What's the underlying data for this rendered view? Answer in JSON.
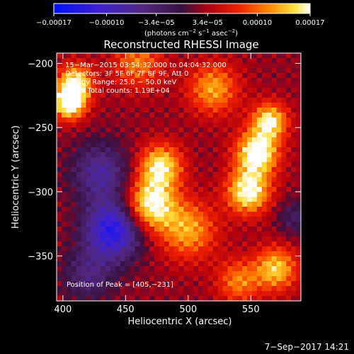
{
  "chart_data": {
    "type": "heatmap",
    "title": "Reconstructed RHESSI Image",
    "xlabel": "Heliocentric X (arcsec)",
    "ylabel": "Heliocentric Y (arcsec)",
    "xlim": [
      395,
      590
    ],
    "ylim": [
      -385,
      -192
    ],
    "x_ticks": [
      400,
      450,
      500,
      550
    ],
    "y_ticks": [
      -200,
      -250,
      -300,
      -350
    ],
    "x_tick_labels": [
      "400",
      "450",
      "500",
      "550"
    ],
    "y_tick_labels": [
      "−200",
      "−250",
      "−300",
      "−350"
    ],
    "colorbar": {
      "range": [
        -0.00017,
        0.00017
      ],
      "ticks": [
        -0.00017,
        -0.0001,
        -3.4e-05,
        3.4e-05,
        0.0001,
        0.00017
      ],
      "tick_labels": [
        "−0.00017",
        "−0.00010",
        "−3.4e−05",
        "3.4e−05",
        "0.00010",
        "0.00017"
      ],
      "label_main": "(photons cm",
      "label_sup1": "−2",
      "label_mid": " s",
      "label_sup2": "−1",
      "label_end": " asec",
      "label_sup3": "−2",
      "label_close": ")",
      "colormap": "rainbow-like: blue-purple-red-orange-yellow-white"
    },
    "annotations": [
      "15−Mar−2015 03:54:32.000 to 04:04:32.000",
      "Detectors: 3F 5F 6F 7F 8F 9F, Att 0",
      "Energy Range: 25.0 − 50.0 keV",
      "Clean    Total counts: 1.19E+04"
    ],
    "peak_label": "Position of Peak = [405,−231]",
    "footer_date": "7−Sep−2017 14:21",
    "image_grid": {
      "nx": 50,
      "ny": 50
    },
    "features": [
      {
        "x": 405,
        "y": -231,
        "v": 1.0,
        "s": 9
      },
      {
        "x": 410,
        "y": -215,
        "v": 0.8,
        "s": 10
      },
      {
        "x": 470,
        "y": -310,
        "v": 0.9,
        "s": 14
      },
      {
        "x": 478,
        "y": -280,
        "v": 0.8,
        "s": 12
      },
      {
        "x": 500,
        "y": -330,
        "v": 0.6,
        "s": 16
      },
      {
        "x": 555,
        "y": -270,
        "v": 0.95,
        "s": 12
      },
      {
        "x": 548,
        "y": -300,
        "v": 0.9,
        "s": 12
      },
      {
        "x": 565,
        "y": -245,
        "v": 0.8,
        "s": 10
      },
      {
        "x": 570,
        "y": -360,
        "v": 0.7,
        "s": 12
      },
      {
        "x": 520,
        "y": -220,
        "v": 0.6,
        "s": 14
      },
      {
        "x": 460,
        "y": -200,
        "v": 0.5,
        "s": 14
      },
      {
        "x": 540,
        "y": -370,
        "v": 0.5,
        "s": 12
      },
      {
        "x": 440,
        "y": -330,
        "v": -0.95,
        "s": 16
      },
      {
        "x": 430,
        "y": -285,
        "v": -0.55,
        "s": 16
      },
      {
        "x": 420,
        "y": -365,
        "v": -0.4,
        "s": 14
      },
      {
        "x": 585,
        "y": -320,
        "v": -0.3,
        "s": 10
      }
    ]
  }
}
